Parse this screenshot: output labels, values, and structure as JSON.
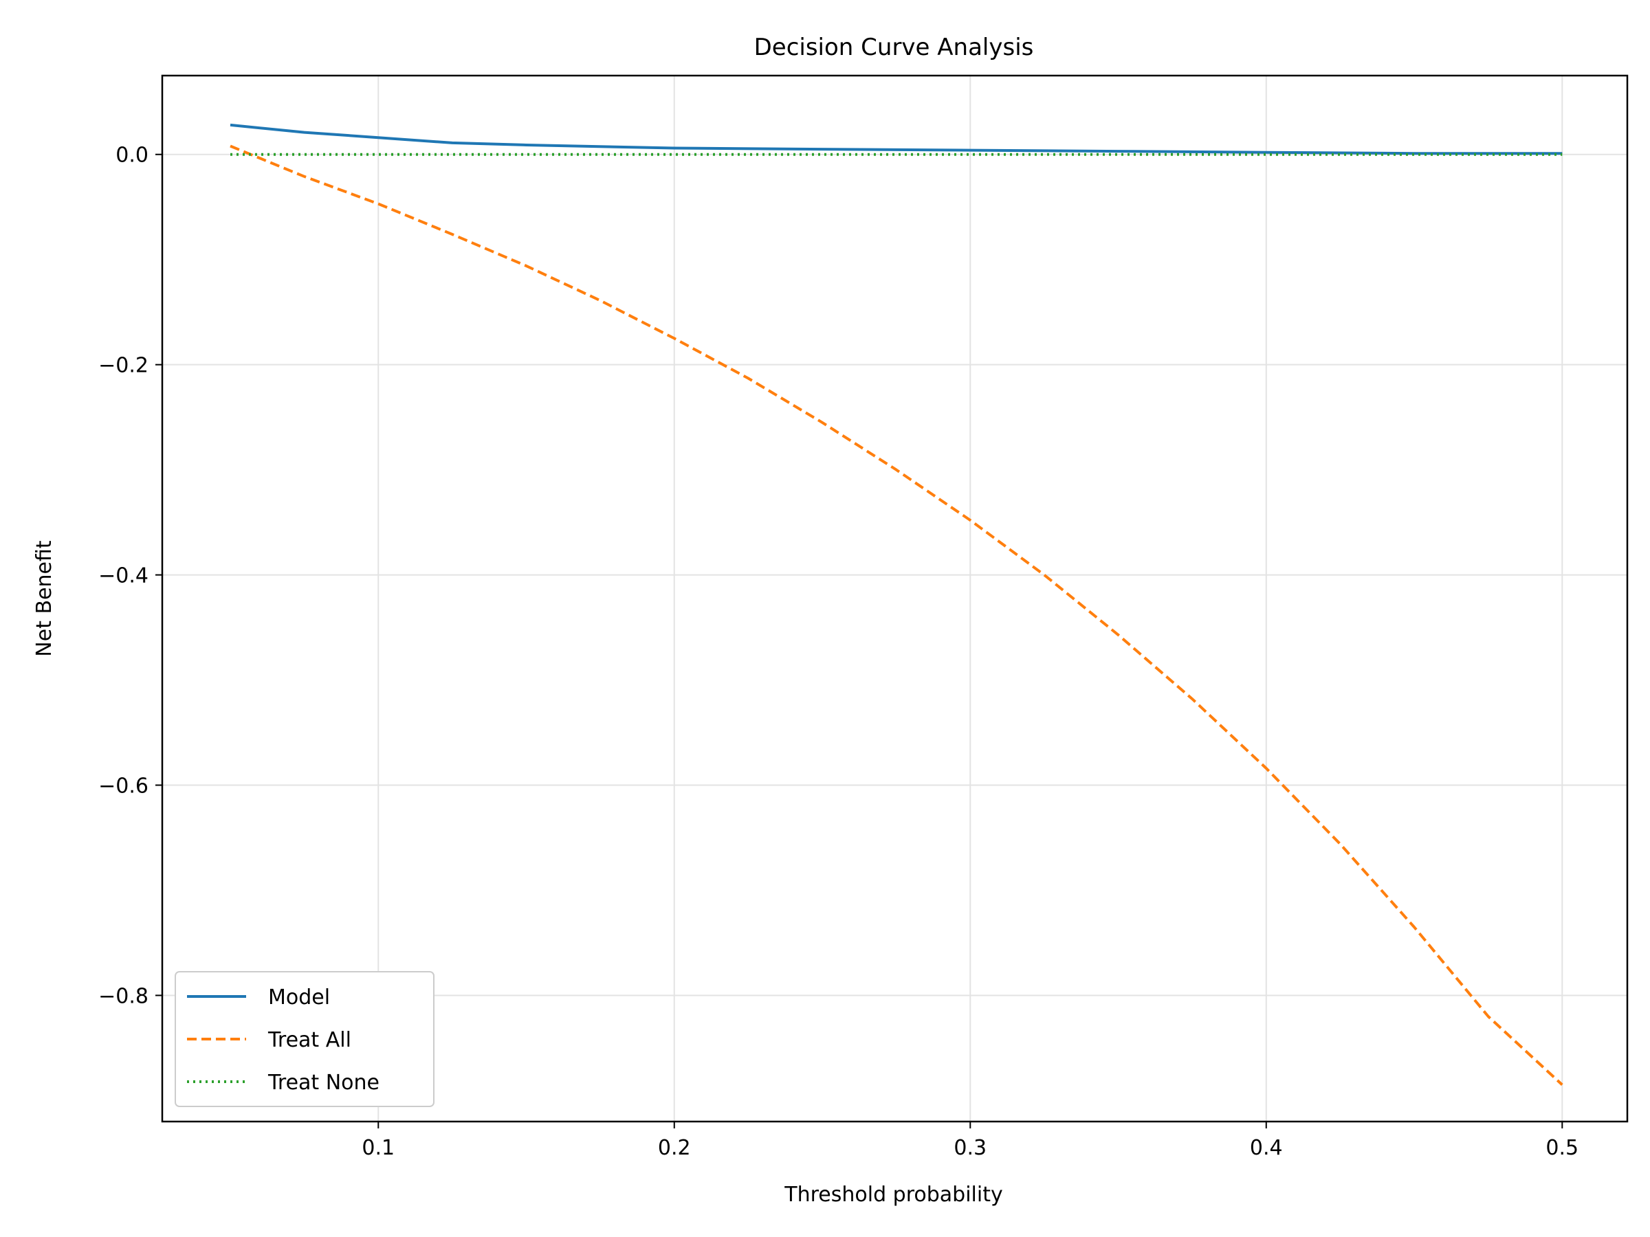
{
  "chart_data": {
    "type": "line",
    "title": "Decision Curve Analysis",
    "xlabel": "Threshold probability",
    "ylabel": "Net Benefit",
    "xlim": [
      0.027,
      0.522
    ],
    "ylim": [
      -0.92,
      0.075
    ],
    "xticks": [
      0.1,
      0.2,
      0.3,
      0.4,
      0.5
    ],
    "xtick_labels": [
      "0.1",
      "0.2",
      "0.3",
      "0.4",
      "0.5"
    ],
    "yticks": [
      0.0,
      -0.2,
      -0.4,
      -0.6,
      -0.8
    ],
    "ytick_labels": [
      "0.0",
      "−0.2",
      "−0.4",
      "−0.6",
      "−0.8"
    ],
    "grid": true,
    "legend_position": "lower-left",
    "series": [
      {
        "name": "Model",
        "color": "#1f77b4",
        "style": "solid",
        "x": [
          0.05,
          0.075,
          0.1,
          0.125,
          0.15,
          0.2,
          0.25,
          0.3,
          0.35,
          0.4,
          0.45,
          0.5
        ],
        "y": [
          0.028,
          0.021,
          0.016,
          0.011,
          0.009,
          0.006,
          0.005,
          0.004,
          0.003,
          0.002,
          0.001,
          0.001
        ]
      },
      {
        "name": "Treat All",
        "color": "#ff7f0e",
        "style": "dashed",
        "x": [
          0.05,
          0.075,
          0.1,
          0.125,
          0.15,
          0.175,
          0.2,
          0.225,
          0.25,
          0.275,
          0.3,
          0.325,
          0.35,
          0.375,
          0.4,
          0.425,
          0.45,
          0.475,
          0.5
        ],
        "y": [
          0.008,
          -0.021,
          -0.047,
          -0.076,
          -0.106,
          -0.139,
          -0.175,
          -0.213,
          -0.255,
          -0.3,
          -0.348,
          -0.4,
          -0.457,
          -0.518,
          -0.584,
          -0.656,
          -0.735,
          -0.82,
          -0.885
        ]
      },
      {
        "name": "Treat None",
        "color": "#2ca02c",
        "style": "dotted",
        "x": [
          0.05,
          0.5
        ],
        "y": [
          0.0,
          0.0
        ]
      }
    ]
  }
}
